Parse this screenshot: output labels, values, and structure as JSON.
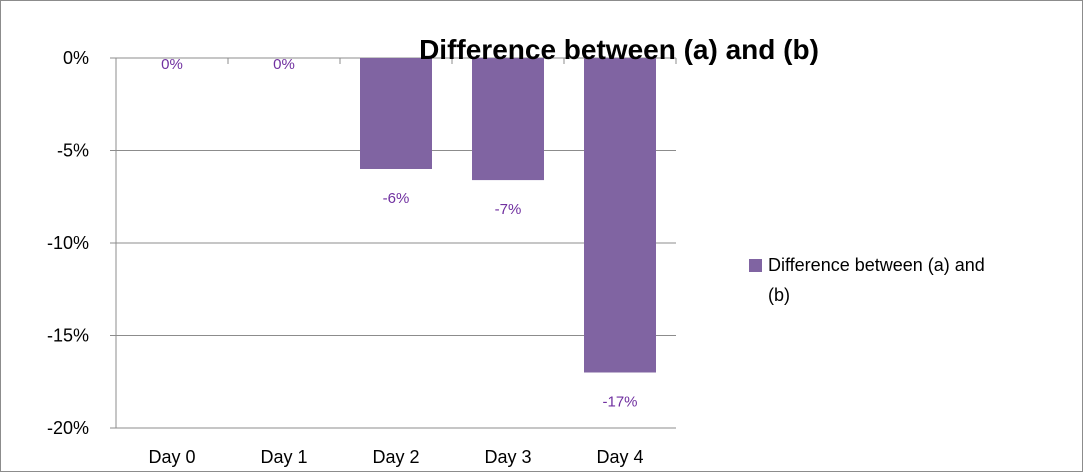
{
  "chart_data": {
    "type": "bar",
    "title": "Difference between (a) and (b)",
    "categories": [
      "Day 0",
      "Day 1",
      "Day 2",
      "Day 3",
      "Day 4"
    ],
    "series": [
      {
        "name": "Difference between (a) and (b)",
        "values": [
          0,
          0,
          -6,
          -6.6,
          -17
        ],
        "data_labels": [
          "0%",
          "0%",
          "-6%",
          "-7%",
          "-17%"
        ],
        "color": "#8064a2",
        "label_color": "#7030a0"
      }
    ],
    "ylim": [
      -20,
      0
    ],
    "yticks": [
      0,
      -5,
      -10,
      -15,
      -20
    ],
    "ytick_labels": [
      "0%",
      "-5%",
      "-10%",
      "-15%",
      "-20%"
    ],
    "grid": true,
    "legend_position": "right",
    "xlabel": "",
    "ylabel": ""
  }
}
